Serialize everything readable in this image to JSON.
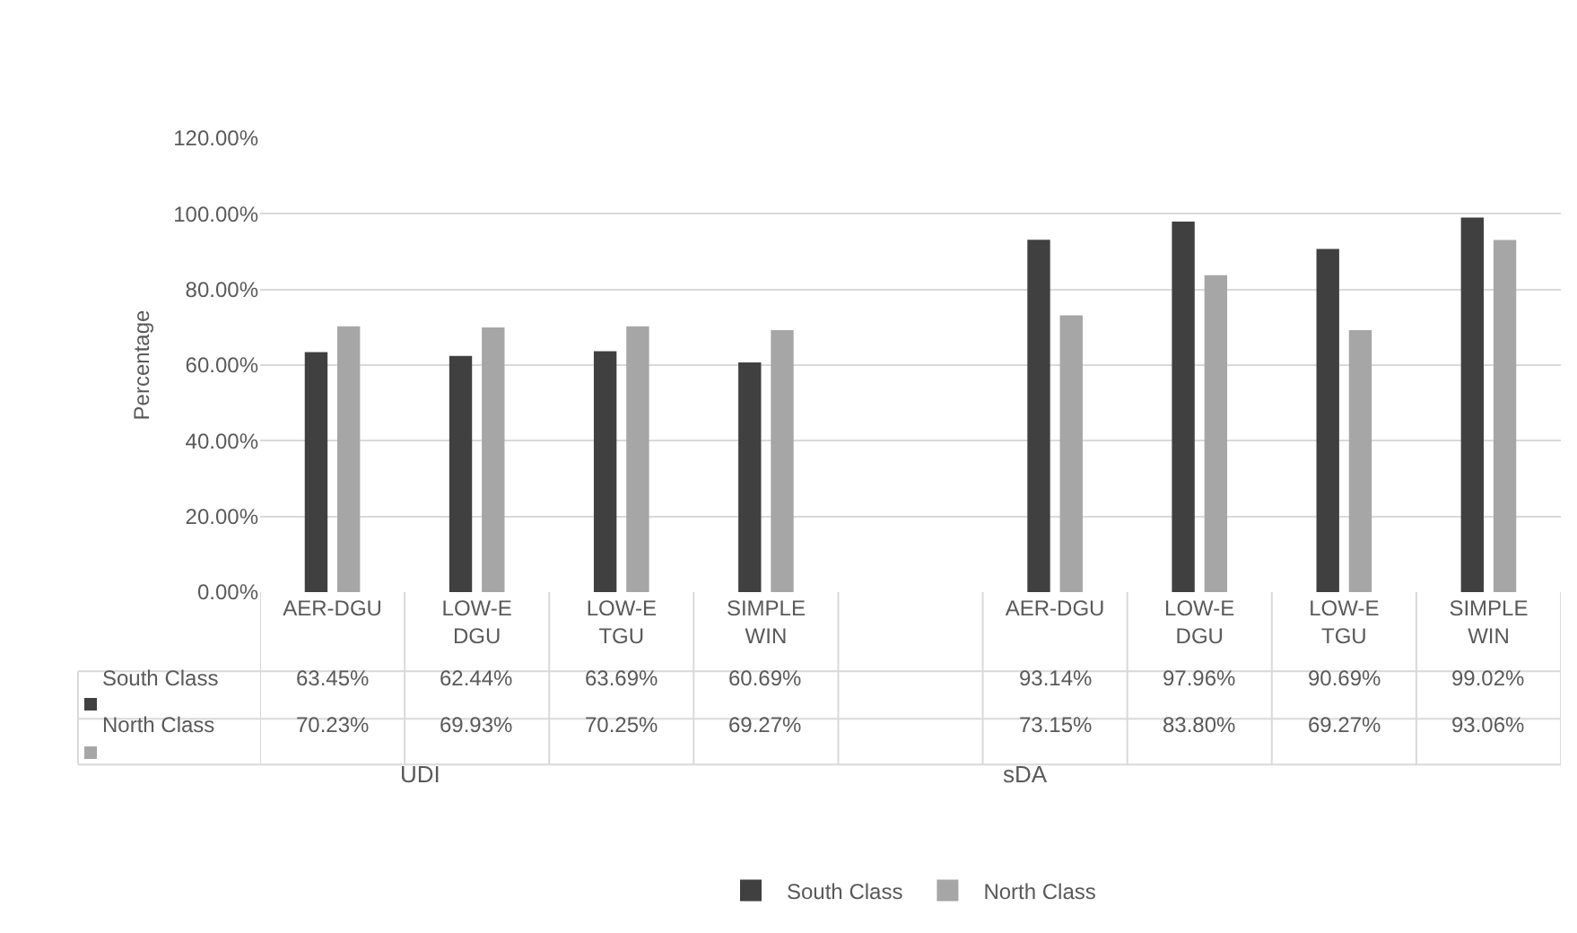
{
  "chart_data": {
    "type": "bar",
    "ylabel": "Percentage",
    "categories": [
      "AER-DGU",
      "LOW-E DGU",
      "LOW-E TGU",
      "SIMPLE WIN",
      null,
      "AER-DGU",
      "LOW-E DGU",
      "LOW-E TGU",
      "SIMPLE WIN"
    ],
    "series": [
      {
        "name": "South Class",
        "color": "#404040",
        "values": [
          63.45,
          62.44,
          63.69,
          60.69,
          null,
          93.14,
          97.96,
          90.69,
          99.02
        ],
        "value_labels": [
          "63.45%",
          "62.44%",
          "63.69%",
          "60.69%",
          null,
          "93.14%",
          "97.96%",
          "90.69%",
          "99.02%"
        ]
      },
      {
        "name": "North Class",
        "color": "#a6a6a6",
        "values": [
          70.23,
          69.93,
          70.25,
          69.27,
          null,
          73.15,
          83.8,
          69.27,
          93.06
        ],
        "value_labels": [
          "70.23%",
          "69.93%",
          "70.25%",
          "69.27%",
          null,
          "73.15%",
          "83.80%",
          "69.27%",
          "93.06%"
        ]
      }
    ],
    "ylim": [
      0,
      120
    ],
    "yticks": [
      {
        "value": 0,
        "label": "0.00%"
      },
      {
        "value": 20,
        "label": "20.00%"
      },
      {
        "value": 40,
        "label": "40.00%"
      },
      {
        "value": 60,
        "label": "60.00%"
      },
      {
        "value": 80,
        "label": "80.00%"
      },
      {
        "value": 100,
        "label": "100.00%"
      },
      {
        "value": 120,
        "label": "120.00%"
      }
    ],
    "grid": "y",
    "legend": "bottom",
    "annotations": [
      "UDI",
      "sDA"
    ]
  }
}
